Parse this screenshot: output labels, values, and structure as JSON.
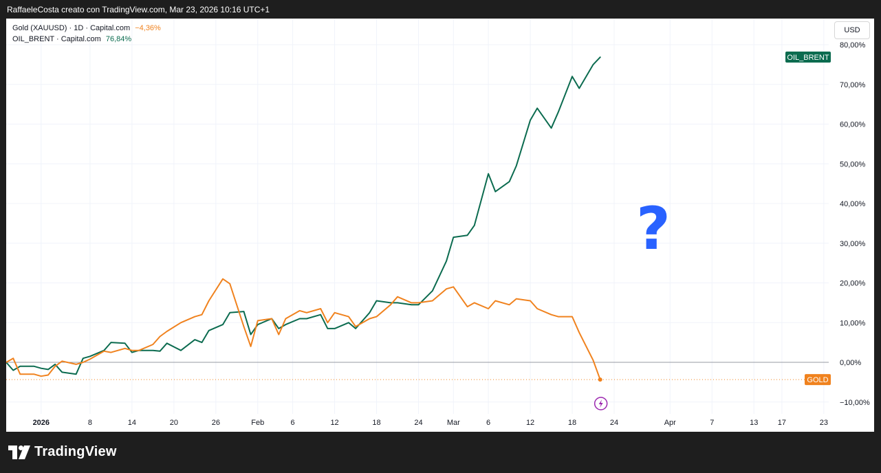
{
  "header": {
    "caption": "RaffaeleCosta creato con TradingView.com, Mar 23, 2026 10:16 UTC+1"
  },
  "legend": [
    {
      "label": "Gold (XAUUSD) · 1D · Capital.com",
      "value": "−4,36%",
      "color": "#f0821e"
    },
    {
      "label": "OIL_BRENT · Capital.com",
      "value": "76,84%",
      "color": "#0b6b4f"
    }
  ],
  "currency_button": "USD",
  "annotation": {
    "text": "?",
    "color": "#2962ff"
  },
  "event_marker": {
    "icon": "lightning-icon",
    "color": "#9c27b0"
  },
  "footer": {
    "brand": "TradingView"
  },
  "chart_data": {
    "type": "line",
    "y_unit": "percent change",
    "ylim": [
      -15,
      85
    ],
    "y_ticks": [
      80,
      70,
      60,
      50,
      40,
      30,
      20,
      10,
      0,
      -10
    ],
    "y_tick_labels": [
      "80,00%",
      "70,00%",
      "60,00%",
      "50,00%",
      "40,00%",
      "30,00%",
      "20,00%",
      "10,00%",
      "0,00%",
      "−10,00%"
    ],
    "grid": true,
    "baseline": 0,
    "x_labels": [
      {
        "label": "2026",
        "x": "2026-01-01",
        "bold": true
      },
      {
        "label": "8",
        "x": "2026-01-08"
      },
      {
        "label": "14",
        "x": "2026-01-14"
      },
      {
        "label": "20",
        "x": "2026-01-20"
      },
      {
        "label": "26",
        "x": "2026-01-26"
      },
      {
        "label": "Feb",
        "x": "2026-02-01"
      },
      {
        "label": "6",
        "x": "2026-02-06"
      },
      {
        "label": "12",
        "x": "2026-02-12"
      },
      {
        "label": "18",
        "x": "2026-02-18"
      },
      {
        "label": "24",
        "x": "2026-02-24"
      },
      {
        "label": "Mar",
        "x": "2026-03-01"
      },
      {
        "label": "6",
        "x": "2026-03-06"
      },
      {
        "label": "12",
        "x": "2026-03-12"
      },
      {
        "label": "18",
        "x": "2026-03-18"
      },
      {
        "label": "24",
        "x": "2026-03-24"
      },
      {
        "label": "Apr",
        "x": "2026-04-01"
      },
      {
        "label": "7",
        "x": "2026-04-07"
      },
      {
        "label": "13",
        "x": "2026-04-13"
      },
      {
        "label": "17",
        "x": "2026-04-17"
      },
      {
        "label": "23",
        "x": "2026-04-23"
      }
    ],
    "x_range": [
      "2025-12-27",
      "2026-04-24"
    ],
    "series": [
      {
        "name": "OIL_BRENT",
        "tag": "OIL_BRENT",
        "color": "#0b6b4f",
        "points": [
          [
            "2025-12-27",
            0
          ],
          [
            "2025-12-28",
            -2.0
          ],
          [
            "2025-12-29",
            -1.0
          ],
          [
            "2025-12-31",
            -1.0
          ],
          [
            "2026-01-01",
            -1.5
          ],
          [
            "2026-01-02",
            -1.8
          ],
          [
            "2026-01-03",
            -0.5
          ],
          [
            "2026-01-04",
            -2.5
          ],
          [
            "2026-01-06",
            -3.0
          ],
          [
            "2026-01-07",
            1.0
          ],
          [
            "2026-01-08",
            1.5
          ],
          [
            "2026-01-10",
            3.0
          ],
          [
            "2026-01-11",
            5.0
          ],
          [
            "2026-01-13",
            4.8
          ],
          [
            "2026-01-14",
            2.5
          ],
          [
            "2026-01-15",
            3.0
          ],
          [
            "2026-01-17",
            3.0
          ],
          [
            "2026-01-18",
            2.8
          ],
          [
            "2026-01-19",
            4.8
          ],
          [
            "2026-01-21",
            3.0
          ],
          [
            "2026-01-23",
            5.7
          ],
          [
            "2026-01-24",
            5.0
          ],
          [
            "2026-01-25",
            8.0
          ],
          [
            "2026-01-27",
            9.5
          ],
          [
            "2026-01-28",
            12.5
          ],
          [
            "2026-01-30",
            12.8
          ],
          [
            "2026-01-31",
            7.0
          ],
          [
            "2026-02-01",
            9.5
          ],
          [
            "2026-02-03",
            11.0
          ],
          [
            "2026-02-04",
            8.5
          ],
          [
            "2026-02-05",
            9.5
          ],
          [
            "2026-02-07",
            11.0
          ],
          [
            "2026-02-08",
            11.0
          ],
          [
            "2026-02-10",
            12.0
          ],
          [
            "2026-02-11",
            8.5
          ],
          [
            "2026-02-12",
            8.5
          ],
          [
            "2026-02-14",
            10.0
          ],
          [
            "2026-02-15",
            8.5
          ],
          [
            "2026-02-17",
            12.5
          ],
          [
            "2026-02-18",
            15.5
          ],
          [
            "2026-02-20",
            15.0
          ],
          [
            "2026-02-21",
            15.0
          ],
          [
            "2026-02-23",
            14.5
          ],
          [
            "2026-02-24",
            14.5
          ],
          [
            "2026-02-26",
            18.0
          ],
          [
            "2026-02-28",
            25.5
          ],
          [
            "2026-03-01",
            31.5
          ],
          [
            "2026-03-03",
            32.0
          ],
          [
            "2026-03-04",
            34.5
          ],
          [
            "2026-03-06",
            47.5
          ],
          [
            "2026-03-07",
            43.0
          ],
          [
            "2026-03-09",
            45.5
          ],
          [
            "2026-03-10",
            49.5
          ],
          [
            "2026-03-12",
            61.0
          ],
          [
            "2026-03-13",
            64.0
          ],
          [
            "2026-03-15",
            59.0
          ],
          [
            "2026-03-16",
            63.0
          ],
          [
            "2026-03-18",
            72.0
          ],
          [
            "2026-03-19",
            69.0
          ],
          [
            "2026-03-21",
            75.0
          ],
          [
            "2026-03-22",
            76.84
          ]
        ]
      },
      {
        "name": "GOLD",
        "tag": "GOLD",
        "color": "#f0821e",
        "points": [
          [
            "2025-12-27",
            0
          ],
          [
            "2025-12-28",
            1.0
          ],
          [
            "2025-12-29",
            -3.0
          ],
          [
            "2025-12-31",
            -3.0
          ],
          [
            "2026-01-01",
            -3.5
          ],
          [
            "2026-01-02",
            -3.2
          ],
          [
            "2026-01-03",
            -1.0
          ],
          [
            "2026-01-04",
            0.3
          ],
          [
            "2026-01-06",
            -0.5
          ],
          [
            "2026-01-07",
            0
          ],
          [
            "2026-01-08",
            0.8
          ],
          [
            "2026-01-10",
            2.8
          ],
          [
            "2026-01-11",
            2.5
          ],
          [
            "2026-01-13",
            3.5
          ],
          [
            "2026-01-14",
            3.0
          ],
          [
            "2026-01-15",
            3.0
          ],
          [
            "2026-01-17",
            4.5
          ],
          [
            "2026-01-18",
            6.5
          ],
          [
            "2026-01-19",
            7.8
          ],
          [
            "2026-01-21",
            10.0
          ],
          [
            "2026-01-23",
            11.5
          ],
          [
            "2026-01-24",
            12.0
          ],
          [
            "2026-01-25",
            15.5
          ],
          [
            "2026-01-27",
            21.0
          ],
          [
            "2026-01-28",
            19.8
          ],
          [
            "2026-01-30",
            9.0
          ],
          [
            "2026-01-31",
            4.0
          ],
          [
            "2026-02-01",
            10.5
          ],
          [
            "2026-02-03",
            11.0
          ],
          [
            "2026-02-04",
            7.0
          ],
          [
            "2026-02-05",
            11.0
          ],
          [
            "2026-02-07",
            13.0
          ],
          [
            "2026-02-08",
            12.5
          ],
          [
            "2026-02-10",
            13.5
          ],
          [
            "2026-02-11",
            10.0
          ],
          [
            "2026-02-12",
            12.5
          ],
          [
            "2026-02-14",
            11.5
          ],
          [
            "2026-02-15",
            9.0
          ],
          [
            "2026-02-17",
            11.0
          ],
          [
            "2026-02-18",
            11.5
          ],
          [
            "2026-02-20",
            14.5
          ],
          [
            "2026-02-21",
            16.5
          ],
          [
            "2026-02-23",
            15.0
          ],
          [
            "2026-02-24",
            15.0
          ],
          [
            "2026-02-26",
            15.5
          ],
          [
            "2026-02-28",
            18.5
          ],
          [
            "2026-03-01",
            19.0
          ],
          [
            "2026-03-03",
            14.0
          ],
          [
            "2026-03-04",
            15.0
          ],
          [
            "2026-03-06",
            13.5
          ],
          [
            "2026-03-07",
            15.5
          ],
          [
            "2026-03-09",
            14.5
          ],
          [
            "2026-03-10",
            16.0
          ],
          [
            "2026-03-12",
            15.5
          ],
          [
            "2026-03-13",
            13.5
          ],
          [
            "2026-03-15",
            12.0
          ],
          [
            "2026-03-16",
            11.5
          ],
          [
            "2026-03-18",
            11.5
          ],
          [
            "2026-03-19",
            7.5
          ],
          [
            "2026-03-21",
            0.5
          ],
          [
            "2026-03-22",
            -4.36
          ]
        ]
      }
    ]
  }
}
